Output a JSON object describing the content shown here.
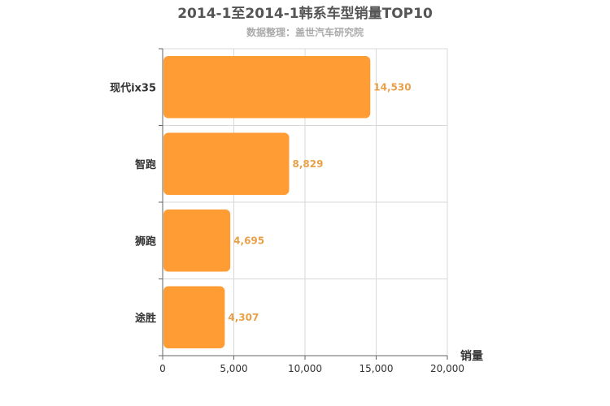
{
  "chart_title": "2014-1至2014-1韩系车型销量TOP10",
  "chart_subtitle": "数据整理：盖世汽车研究院",
  "chart_data": {
    "type": "bar",
    "orientation": "horizontal",
    "title": "2014-1至2014-1韩系车型销量TOP10",
    "subtitle": "数据整理：盖世汽车研究院",
    "categories": [
      "现代ix35",
      "智跑",
      "狮跑",
      "途胜"
    ],
    "values": [
      14530,
      8829,
      4695,
      4307
    ],
    "value_labels": [
      "14,530",
      "8,829",
      "4,695",
      "4,307"
    ],
    "xlabel": "销量",
    "ylabel": "",
    "xlim": [
      0,
      20000
    ],
    "x_ticks": [
      0,
      5000,
      10000,
      15000,
      20000
    ],
    "x_tick_labels": [
      "0",
      "5,000",
      "10,000",
      "15,000",
      "20,000"
    ],
    "grid": true,
    "bar_color": "#ff9c34",
    "value_label_color": "#e8a14a",
    "grid_color": "#d8d8d8",
    "axis_color": "#666666"
  }
}
